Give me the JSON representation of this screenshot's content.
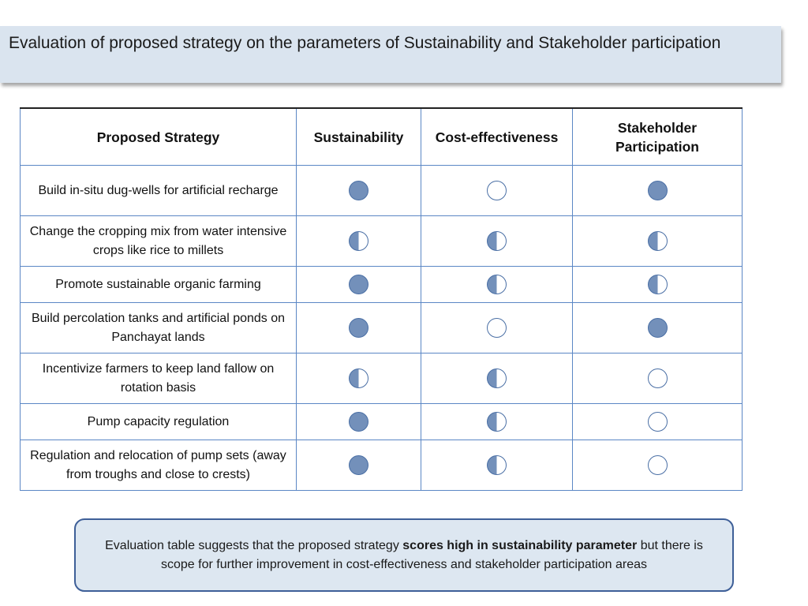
{
  "header": {
    "title": "Evaluation of proposed strategy on the parameters of Sustainability and Stakeholder participation"
  },
  "table": {
    "columns": [
      "Proposed Strategy",
      "Sustainability",
      "Cost-effectiveness",
      "Stakeholder Participation"
    ],
    "rows": [
      {
        "strategy": "Build in-situ dug-wells for artificial recharge",
        "sustainability": "full",
        "cost_effectiveness": "empty",
        "stakeholder_participation": "full"
      },
      {
        "strategy": "Change the cropping mix from water intensive crops like rice to millets",
        "sustainability": "half",
        "cost_effectiveness": "half",
        "stakeholder_participation": "half"
      },
      {
        "strategy": "Promote sustainable organic farming",
        "sustainability": "full",
        "cost_effectiveness": "half",
        "stakeholder_participation": "half"
      },
      {
        "strategy": "Build percolation tanks and artificial ponds on Panchayat lands",
        "sustainability": "full",
        "cost_effectiveness": "empty",
        "stakeholder_participation": "full"
      },
      {
        "strategy": "Incentivize farmers to keep land fallow on rotation basis",
        "sustainability": "half",
        "cost_effectiveness": "half",
        "stakeholder_participation": "empty"
      },
      {
        "strategy": "Pump capacity regulation",
        "sustainability": "full",
        "cost_effectiveness": "half",
        "stakeholder_participation": "empty"
      },
      {
        "strategy": "Regulation and relocation of pump sets (away from troughs and close to crests)",
        "sustainability": "full",
        "cost_effectiveness": "half",
        "stakeholder_participation": "empty"
      }
    ],
    "rating_colors": {
      "fill": "#7390ba",
      "outline": "#4a6fa5"
    }
  },
  "note": {
    "text_before": "Evaluation table suggests that the proposed strategy ",
    "text_bold": "scores high in sustainability parameter",
    "text_after": " but there is scope for further improvement in cost-effectiveness and stakeholder participation areas"
  }
}
